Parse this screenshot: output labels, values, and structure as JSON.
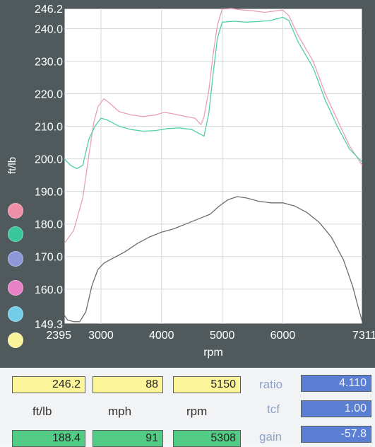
{
  "chart_data": {
    "type": "line",
    "xlabel": "rpm",
    "ylabel": "ft/lb",
    "xlim": [
      2395,
      7311
    ],
    "ylim": [
      149.3,
      246.2
    ],
    "x_ticks": [
      "2395",
      "3000",
      "4000",
      "5000",
      "6000",
      "7311"
    ],
    "y_ticks": [
      "246.2",
      "240.0",
      "230.0",
      "220.0",
      "210.0",
      "200.0",
      "190.0",
      "180.0",
      "170.0",
      "160.0",
      "149.3"
    ],
    "grid": true,
    "series": [
      {
        "color": "#e8a0b8",
        "points": [
          [
            2395,
            174
          ],
          [
            2550,
            178
          ],
          [
            2700,
            188
          ],
          [
            2800,
            201
          ],
          [
            2880,
            211
          ],
          [
            2950,
            216
          ],
          [
            3050,
            218.5
          ],
          [
            3150,
            217
          ],
          [
            3300,
            214.5
          ],
          [
            3500,
            213.5
          ],
          [
            3700,
            213
          ],
          [
            3900,
            213.5
          ],
          [
            4050,
            214.3
          ],
          [
            4200,
            213.8
          ],
          [
            4400,
            213
          ],
          [
            4550,
            212.5
          ],
          [
            4650,
            210.5
          ],
          [
            4700,
            213
          ],
          [
            4780,
            221
          ],
          [
            4850,
            232
          ],
          [
            4920,
            241
          ],
          [
            5000,
            246
          ],
          [
            5150,
            246.2
          ],
          [
            5300,
            245.8
          ],
          [
            5500,
            245.5
          ],
          [
            5700,
            245
          ],
          [
            5900,
            245.5
          ],
          [
            6000,
            245.7
          ],
          [
            6100,
            244
          ],
          [
            6250,
            238
          ],
          [
            6500,
            230
          ],
          [
            6700,
            220
          ],
          [
            6900,
            212
          ],
          [
            7100,
            204
          ],
          [
            7311,
            198
          ]
        ]
      },
      {
        "color": "#4fd0a8",
        "points": [
          [
            2395,
            200
          ],
          [
            2500,
            198
          ],
          [
            2600,
            197
          ],
          [
            2700,
            198
          ],
          [
            2800,
            206
          ],
          [
            2900,
            210
          ],
          [
            3000,
            212.5
          ],
          [
            3100,
            212
          ],
          [
            3300,
            210
          ],
          [
            3500,
            209
          ],
          [
            3700,
            208.5
          ],
          [
            3900,
            208.7
          ],
          [
            4100,
            209.3
          ],
          [
            4300,
            209.5
          ],
          [
            4500,
            209
          ],
          [
            4600,
            208
          ],
          [
            4700,
            207
          ],
          [
            4780,
            214
          ],
          [
            4850,
            226
          ],
          [
            4920,
            237
          ],
          [
            5000,
            242
          ],
          [
            5200,
            242.3
          ],
          [
            5400,
            242
          ],
          [
            5600,
            242.2
          ],
          [
            5800,
            242.5
          ],
          [
            6000,
            243.5
          ],
          [
            6100,
            242.5
          ],
          [
            6250,
            236
          ],
          [
            6500,
            228
          ],
          [
            6700,
            218
          ],
          [
            6900,
            210
          ],
          [
            7100,
            203
          ],
          [
            7311,
            199
          ]
        ]
      },
      {
        "color": "#6a6e70",
        "points": [
          [
            2395,
            152
          ],
          [
            2450,
            150.5
          ],
          [
            2550,
            150
          ],
          [
            2650,
            150
          ],
          [
            2750,
            153
          ],
          [
            2850,
            161
          ],
          [
            2950,
            166
          ],
          [
            3050,
            168
          ],
          [
            3200,
            169.5
          ],
          [
            3400,
            171.5
          ],
          [
            3600,
            174
          ],
          [
            3800,
            176
          ],
          [
            4000,
            177.5
          ],
          [
            4200,
            178.5
          ],
          [
            4400,
            180
          ],
          [
            4600,
            181.5
          ],
          [
            4800,
            183
          ],
          [
            4950,
            185.5
          ],
          [
            5100,
            187.5
          ],
          [
            5250,
            188.4
          ],
          [
            5400,
            188
          ],
          [
            5600,
            187
          ],
          [
            5800,
            186.5
          ],
          [
            6000,
            186.5
          ],
          [
            6200,
            185.5
          ],
          [
            6400,
            183.5
          ],
          [
            6600,
            180.5
          ],
          [
            6800,
            176
          ],
          [
            7000,
            169
          ],
          [
            7150,
            161
          ],
          [
            7250,
            154
          ],
          [
            7311,
            150
          ]
        ]
      }
    ]
  },
  "dots": [
    {
      "color": "#f08fa8"
    },
    {
      "color": "#39c69b"
    },
    {
      "color": "#8d98d8"
    },
    {
      "color": "#e882c6"
    },
    {
      "color": "#74cde8"
    },
    {
      "color": "#fbf39a"
    }
  ],
  "readout": {
    "row1": {
      "torque": "246.2",
      "mph": "88",
      "rpm": "5150"
    },
    "labels": {
      "torque": "ft/lb",
      "mph": "mph",
      "rpm": "rpm"
    },
    "row2": {
      "torque": "188.4",
      "mph": "91",
      "rpm": "5308"
    },
    "right": [
      {
        "label": "ratio",
        "value": "4.110"
      },
      {
        "label": "tcf",
        "value": "1.00"
      },
      {
        "label": "gain",
        "value": "-57.8"
      }
    ]
  }
}
